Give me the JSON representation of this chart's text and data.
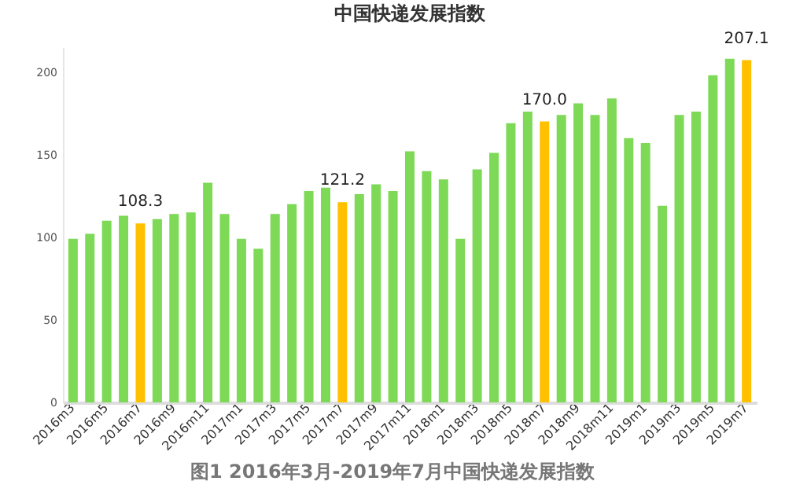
{
  "chart_data": {
    "type": "bar",
    "title": "中国快递发展指数",
    "categories": [
      "2016m3",
      null,
      "2016m5",
      null,
      "2016m7",
      null,
      "2016m9",
      null,
      "2016m11",
      null,
      "2017m1",
      null,
      "2017m3",
      null,
      "2017m5",
      null,
      "2017m7",
      null,
      "2017m9",
      null,
      "2017m11",
      null,
      "2018m1",
      null,
      "2018m3",
      null,
      "2018m5",
      null,
      "2018m7",
      null,
      "2018m9",
      null,
      "2018m11",
      null,
      "2019m1",
      null,
      "2019m3",
      null,
      "2019m5",
      null,
      "2019m7"
    ],
    "values": [
      99,
      102,
      110,
      113,
      108.3,
      111,
      114,
      115,
      133,
      114,
      99,
      93,
      114,
      120,
      128,
      130,
      121.2,
      126,
      132,
      128,
      152,
      140,
      135,
      99,
      141,
      151,
      169,
      176,
      170.0,
      174,
      181,
      174,
      184,
      160,
      157,
      119,
      174,
      176,
      198,
      208,
      207.1
    ],
    "colors": [
      "#7ed957",
      "#7ed957",
      "#7ed957",
      "#7ed957",
      "#ffc000",
      "#7ed957",
      "#7ed957",
      "#7ed957",
      "#7ed957",
      "#7ed957",
      "#7ed957",
      "#7ed957",
      "#7ed957",
      "#7ed957",
      "#7ed957",
      "#7ed957",
      "#ffc000",
      "#7ed957",
      "#7ed957",
      "#7ed957",
      "#7ed957",
      "#7ed957",
      "#7ed957",
      "#7ed957",
      "#7ed957",
      "#7ed957",
      "#7ed957",
      "#7ed957",
      "#ffc000",
      "#7ed957",
      "#7ed957",
      "#7ed957",
      "#7ed957",
      "#7ed957",
      "#7ed957",
      "#7ed957",
      "#7ed957",
      "#7ed957",
      "#7ed957",
      "#7ed957",
      "#ffc000"
    ],
    "value_labels": [
      null,
      null,
      null,
      null,
      "108.3",
      null,
      null,
      null,
      null,
      null,
      null,
      null,
      null,
      null,
      null,
      null,
      "121.2",
      null,
      null,
      null,
      null,
      null,
      null,
      null,
      null,
      null,
      null,
      null,
      "170.0",
      null,
      null,
      null,
      null,
      null,
      null,
      null,
      null,
      null,
      null,
      null,
      "207.1"
    ],
    "ylim": [
      0,
      215
    ],
    "yticks": [
      0,
      50,
      100,
      150,
      200
    ],
    "grid": false,
    "annotations": [
      "图1 2016年3月-2019年7月中国快递发展指数"
    ]
  }
}
